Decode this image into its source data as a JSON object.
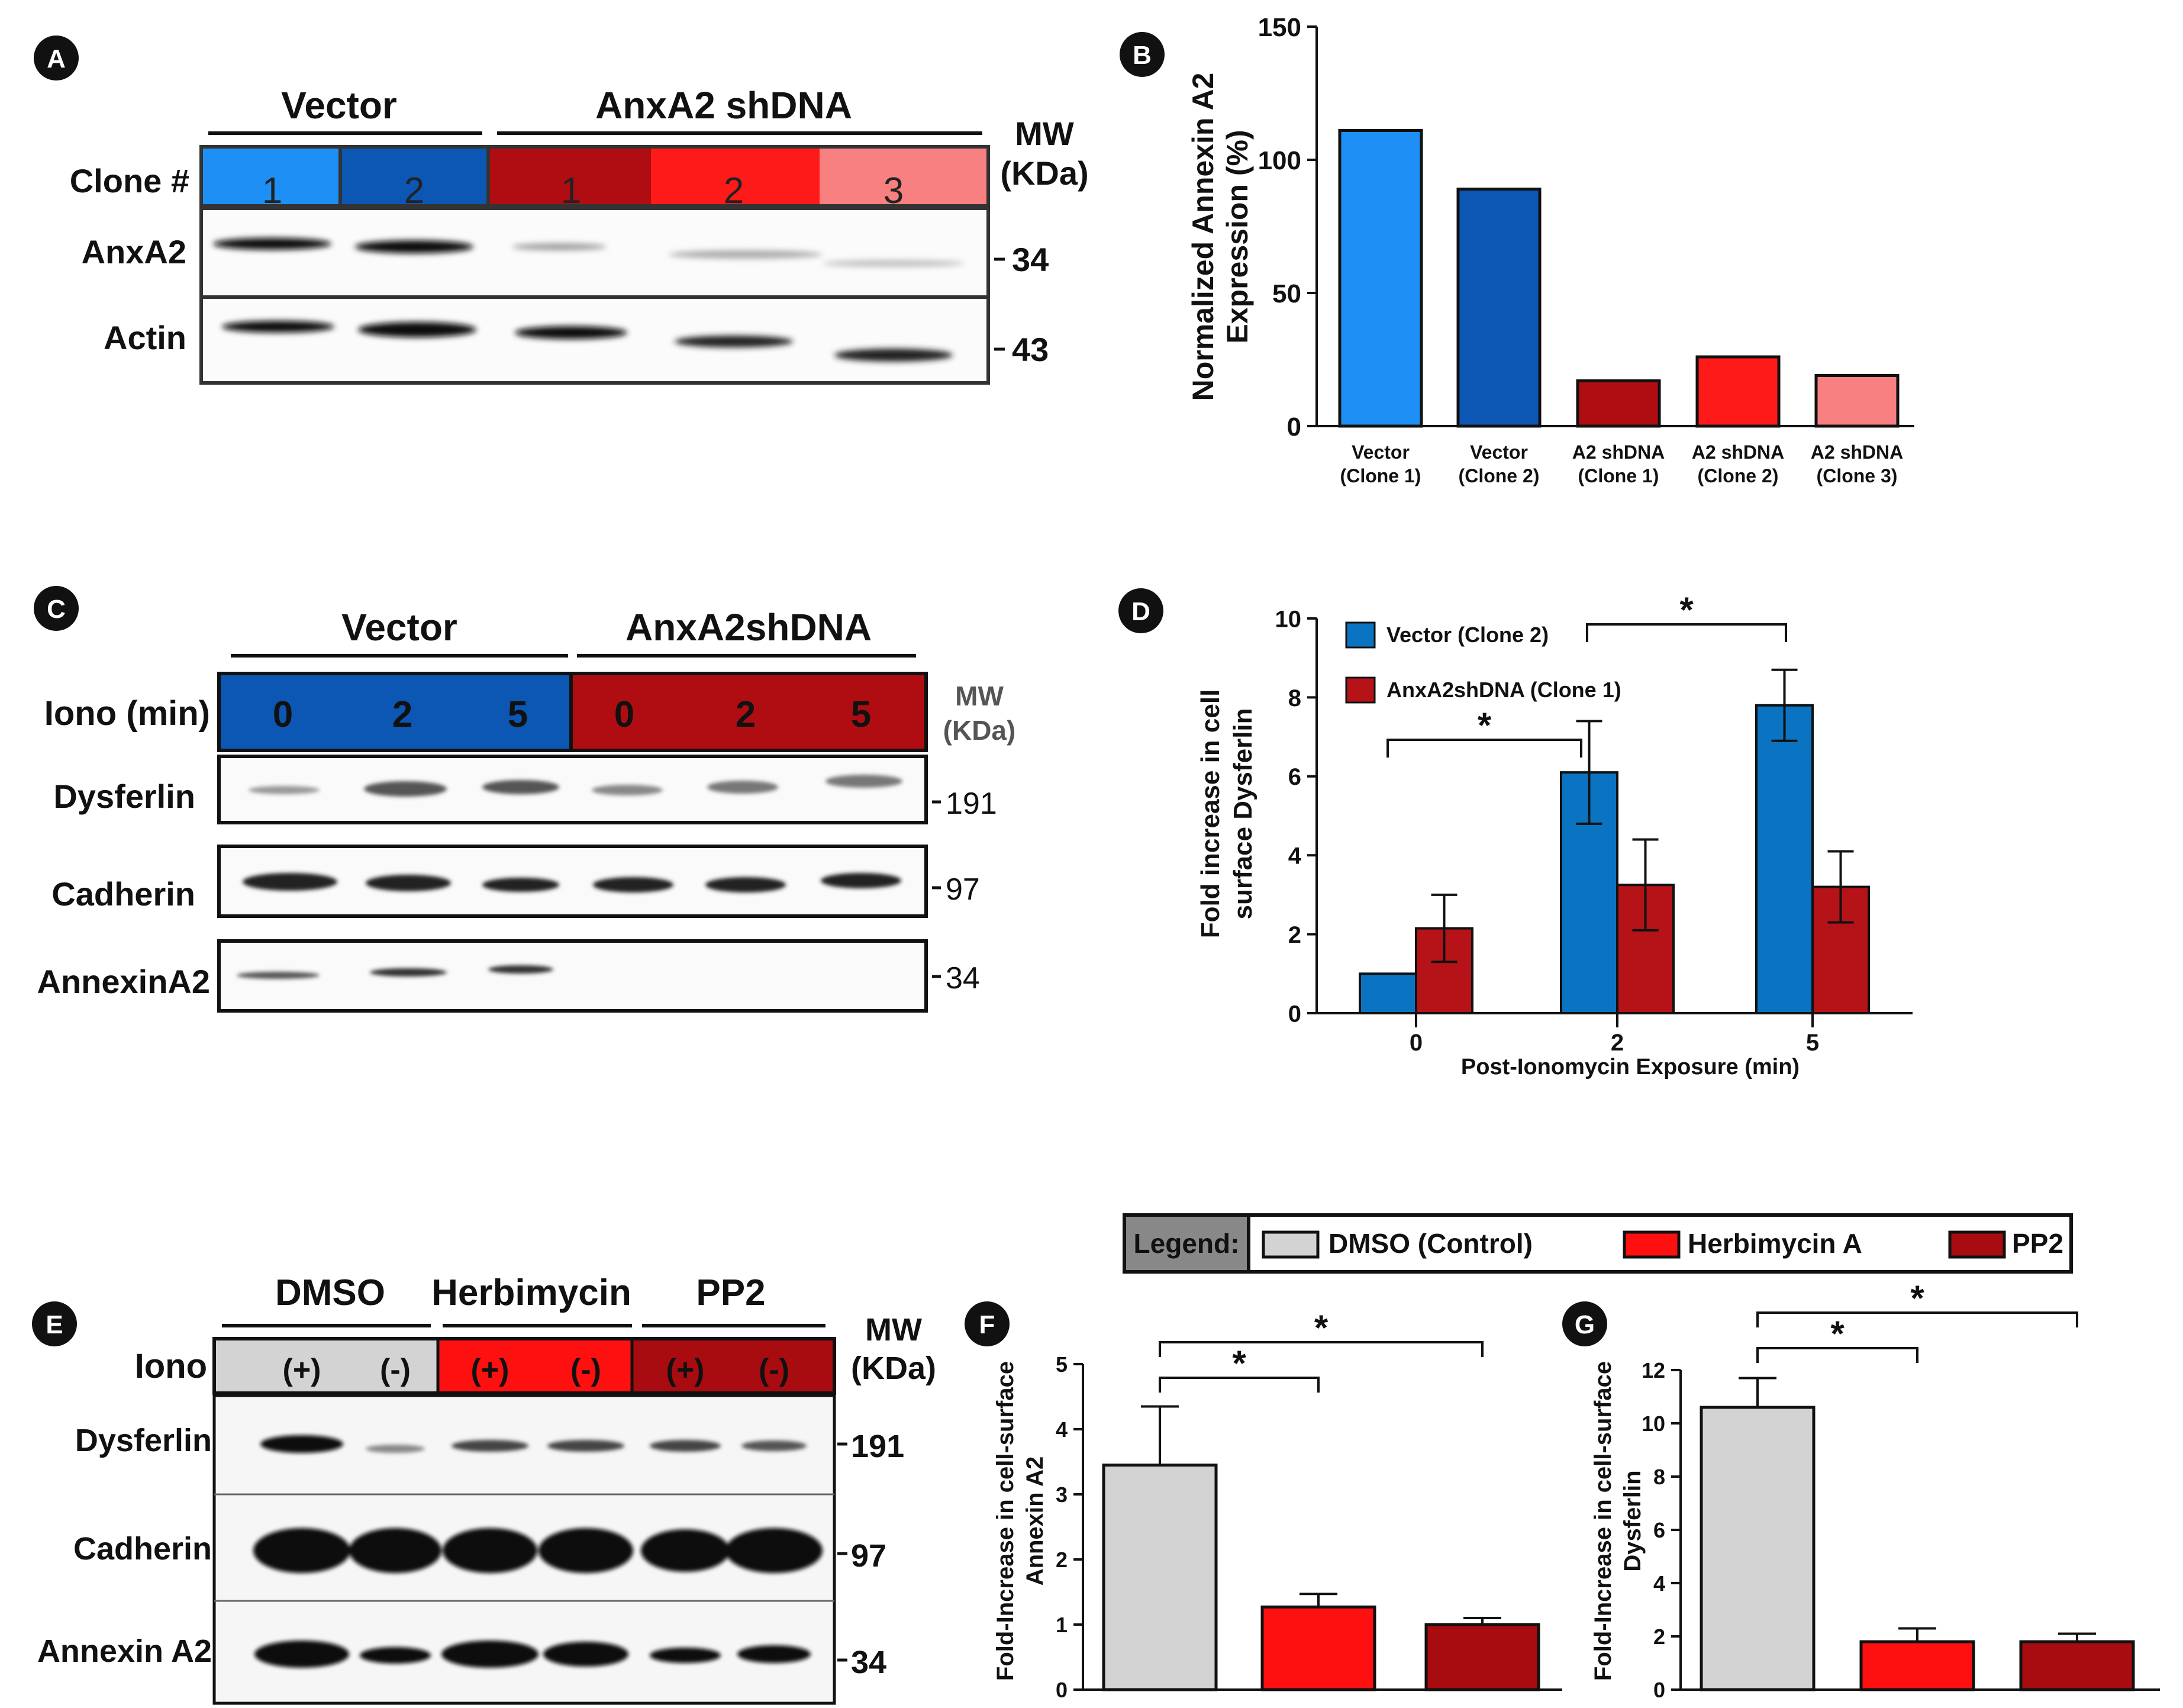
{
  "colors": {
    "vector1": "#1E8FF5",
    "vector2": "#0B57B3",
    "sh1": "#B00D12",
    "sh2": "#FF1A1A",
    "sh3": "#F88080",
    "blue_bar": "#0B74C2",
    "red_bar": "#B51318",
    "dmso": "#D3D3D3",
    "herb": "#FF1010",
    "pp2": "#A80C10",
    "legend_gray": "#888888"
  },
  "panels": {
    "A": "A",
    "B": "B",
    "C": "C",
    "D": "D",
    "E": "E",
    "F": "F",
    "G": "G"
  },
  "panelA": {
    "group_vector": "Vector",
    "group_sh": "AnxA2 shDNA",
    "clone_label": "Clone #",
    "clones": [
      "1",
      "2",
      "1",
      "2",
      "3"
    ],
    "mw_line1": "MW",
    "mw_line2": "(KDa)",
    "row_anxa2": "AnxA2",
    "row_actin": "Actin",
    "mw_anxa2": "34",
    "mw_actin": "43"
  },
  "panelC": {
    "group_vector": "Vector",
    "group_sh": "AnxA2shDNA",
    "iono_label": "Iono (min)",
    "times": [
      "0",
      "2",
      "5",
      "0",
      "2",
      "5"
    ],
    "mw_line1": "MW",
    "mw_line2": "(KDa)",
    "row_dysferlin": "Dysferlin",
    "row_cadherin": "Cadherin",
    "row_annexin": "AnnexinA2",
    "mw_dysferlin": "191",
    "mw_cadherin": "97",
    "mw_annexin": "34"
  },
  "panelE": {
    "group_dmso": "DMSO",
    "group_herb": "Herbimycin",
    "group_pp2": "PP2",
    "iono_label": "Iono",
    "signs": [
      "(+)",
      "(-)",
      "(+)",
      "(-)",
      "(+)",
      "(-)"
    ],
    "mw_line1": "MW",
    "mw_line2": "(KDa)",
    "row_dysferlin": "Dysferlin",
    "row_cadherin": "Cadherin",
    "row_annexin": "Annexin A2",
    "mw_dysferlin": "191",
    "mw_cadherin": "97",
    "mw_annexin": "34"
  },
  "legend": {
    "title": "Legend:",
    "items": [
      "DMSO (Control)",
      "Herbimycin A",
      "PP2"
    ]
  },
  "chart_data": [
    {
      "panel": "B",
      "type": "bar",
      "ylabel": "Normalized Annexin A2 Expression (%)",
      "ylabel_line1": "Normalized Annexin A2",
      "ylabel_line2": "Expression (%)",
      "ylim": [
        0,
        150
      ],
      "yticks": [
        "0",
        "50",
        "100",
        "150"
      ],
      "categories": [
        [
          "Vector",
          "(Clone 1)"
        ],
        [
          "Vector",
          "(Clone 2)"
        ],
        [
          "A2 shDNA",
          "(Clone 1)"
        ],
        [
          "A2 shDNA",
          "(Clone 2)"
        ],
        [
          "A2 shDNA",
          "(Clone 3)"
        ]
      ],
      "values": [
        111,
        89,
        17,
        26,
        19
      ]
    },
    {
      "panel": "D",
      "type": "bar",
      "ylabel_line1": "Fold increase in cell",
      "ylabel_line2": "surface Dysferlin",
      "xlabel": "Post-Ionomycin Exposure (min)",
      "ylim": [
        0,
        10
      ],
      "yticks": [
        "0",
        "2",
        "4",
        "6",
        "8",
        "10"
      ],
      "categories": [
        "0",
        "2",
        "5"
      ],
      "series": [
        {
          "name": "Vector (Clone 2)",
          "values": [
            1.0,
            6.1,
            7.8
          ],
          "errors": [
            0,
            1.3,
            0.9
          ]
        },
        {
          "name": "AnxA2shDNA (Clone 1)",
          "values": [
            2.15,
            3.25,
            3.2
          ],
          "errors": [
            0.85,
            1.15,
            0.9
          ]
        }
      ],
      "significance": [
        "*",
        "*"
      ]
    },
    {
      "panel": "F",
      "type": "bar",
      "ylabel_line1": "Fold-Increase in cell-surface",
      "ylabel_line2": "Annexin A2",
      "ylim": [
        0,
        5
      ],
      "yticks": [
        "0",
        "1",
        "2",
        "3",
        "4",
        "5"
      ],
      "categories": [
        "DMSO (Control)",
        "Herbimycin A",
        "PP2"
      ],
      "values": [
        3.45,
        1.27,
        1.0
      ],
      "errors": [
        0.9,
        0.2,
        0.1
      ],
      "significance": [
        "*",
        "*"
      ]
    },
    {
      "panel": "G",
      "type": "bar",
      "ylabel_line1": "Fold-Increase in cell-surface",
      "ylabel_line2": "Dysferlin",
      "ylim": [
        0,
        12
      ],
      "yticks": [
        "0",
        "2",
        "4",
        "6",
        "8",
        "10",
        "12"
      ],
      "categories": [
        "DMSO (Control)",
        "Herbimycin A",
        "PP2"
      ],
      "values": [
        10.6,
        1.8,
        1.8
      ],
      "errors": [
        1.1,
        0.5,
        0.3
      ],
      "significance": [
        "*",
        "*"
      ]
    }
  ]
}
